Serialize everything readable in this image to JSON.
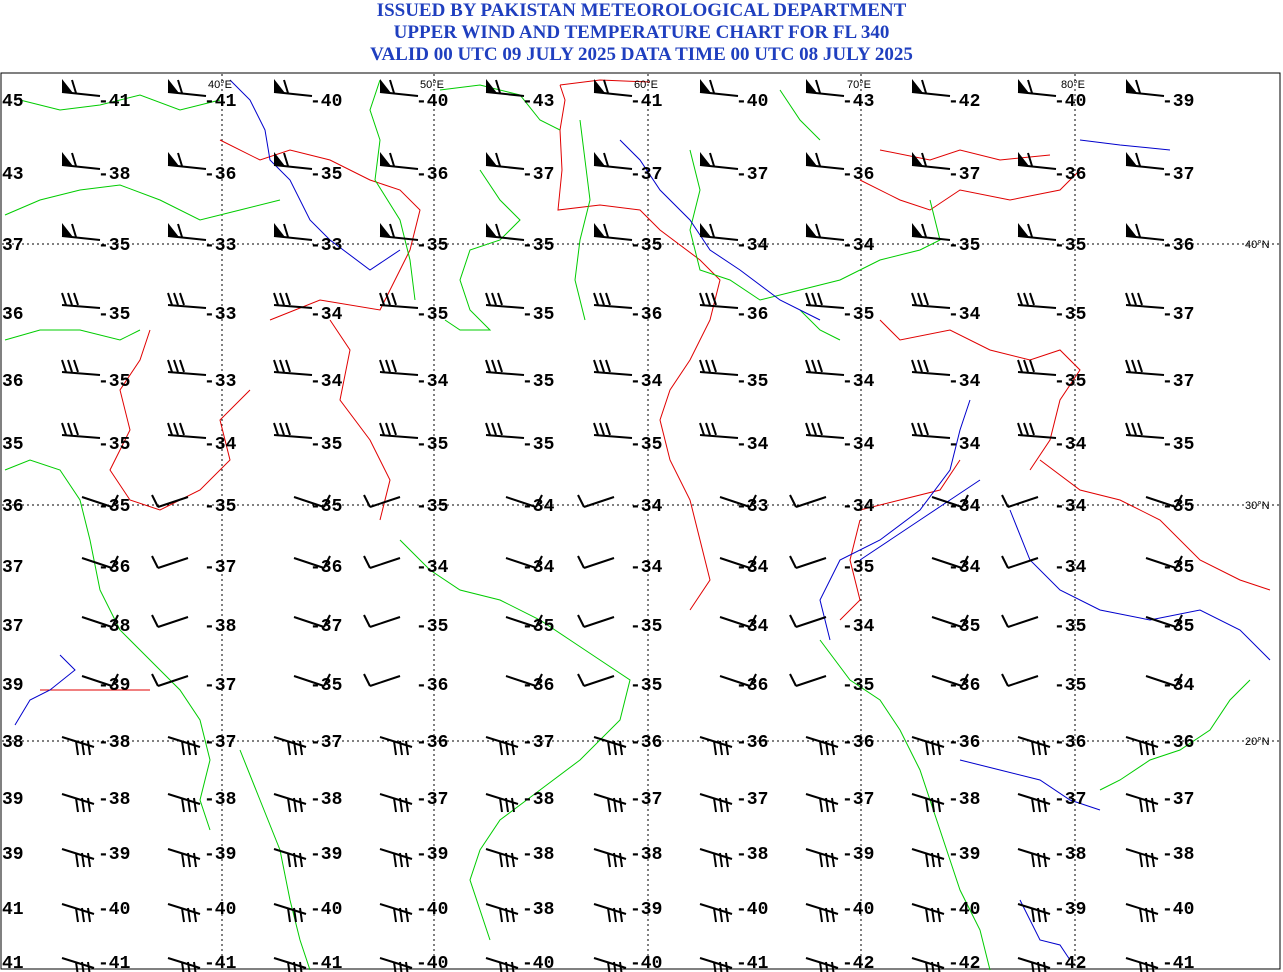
{
  "header": {
    "line1": "ISSUED BY PAKISTAN METEOROLOGICAL DEPARTMENT",
    "line2": "UPPER WIND AND TEMPERATURE CHART FOR FL 340",
    "line3": "VALID 00 UTC 09 JULY 2025 DATA TIME 00 UTC 08 JULY 2025"
  },
  "colors": {
    "title": "#1f3fbf",
    "border_political": "#e00000",
    "coast": "#00cc00",
    "river": "#0000cc",
    "barb": "#000000",
    "grid": "#000000"
  },
  "axes": {
    "longitude_labels": [
      "40°E",
      "50°E",
      "60°E",
      "70°E",
      "80°E"
    ],
    "latitude_labels": [
      "40°N",
      "30°N",
      "20°N"
    ]
  },
  "rows": [
    {
      "lead": "45",
      "temps": [
        "-41",
        "-41",
        "-40",
        "-40",
        "-43",
        "-41",
        "-40",
        "-43",
        "-42",
        "-40",
        "-39"
      ]
    },
    {
      "lead": "43",
      "temps": [
        "-38",
        "-36",
        "-35",
        "-36",
        "-37",
        "-37",
        "-37",
        "-36",
        "-37",
        "-36",
        "-37"
      ]
    },
    {
      "lead": "37",
      "temps": [
        "-35",
        "-33",
        "-33",
        "-35",
        "-35",
        "-35",
        "-34",
        "-34",
        "-35",
        "-35",
        "-36"
      ]
    },
    {
      "lead": "36",
      "temps": [
        "-35",
        "-33",
        "-34",
        "-35",
        "-35",
        "-36",
        "-36",
        "-35",
        "-34",
        "-35",
        "-37"
      ]
    },
    {
      "lead": "36",
      "temps": [
        "-35",
        "-33",
        "-34",
        "-34",
        "-35",
        "-34",
        "-35",
        "-34",
        "-34",
        "-35",
        "-37"
      ]
    },
    {
      "lead": "35",
      "temps": [
        "-35",
        "-34",
        "-35",
        "-35",
        "-35",
        "-35",
        "-34",
        "-34",
        "-34",
        "-34",
        "-35"
      ]
    },
    {
      "lead": "36",
      "temps": [
        "-35",
        "-35",
        "-35",
        "-35",
        "-34",
        "-34",
        "-33",
        "-34",
        "-34",
        "-34",
        "-35"
      ]
    },
    {
      "lead": "37",
      "temps": [
        "-36",
        "-37",
        "-36",
        "-34",
        "-34",
        "-34",
        "-34",
        "-35",
        "-34",
        "-34",
        "-35"
      ]
    },
    {
      "lead": "37",
      "temps": [
        "-38",
        "-38",
        "-37",
        "-35",
        "-35",
        "-35",
        "-34",
        "-34",
        "-35",
        "-35",
        "-35"
      ]
    },
    {
      "lead": "39",
      "temps": [
        "-39",
        "-37",
        "-35",
        "-36",
        "-36",
        "-35",
        "-36",
        "-35",
        "-36",
        "-35",
        "-34"
      ]
    },
    {
      "lead": "38",
      "temps": [
        "-38",
        "-37",
        "-37",
        "-36",
        "-37",
        "-36",
        "-36",
        "-36",
        "-36",
        "-36",
        "-36"
      ]
    },
    {
      "lead": "39",
      "temps": [
        "-38",
        "-38",
        "-38",
        "-37",
        "-38",
        "-37",
        "-37",
        "-37",
        "-38",
        "-37",
        "-37"
      ]
    },
    {
      "lead": "39",
      "temps": [
        "-39",
        "-39",
        "-39",
        "-39",
        "-38",
        "-38",
        "-38",
        "-39",
        "-39",
        "-38",
        "-38"
      ]
    },
    {
      "lead": "41",
      "temps": [
        "-40",
        "-40",
        "-40",
        "-40",
        "-38",
        "-39",
        "-40",
        "-40",
        "-40",
        "-39",
        "-40"
      ]
    },
    {
      "lead": "41",
      "temps": [
        "-41",
        "-41",
        "-41",
        "-40",
        "-40",
        "-40",
        "-41",
        "-42",
        "-42",
        "-42",
        "-41"
      ]
    }
  ]
}
